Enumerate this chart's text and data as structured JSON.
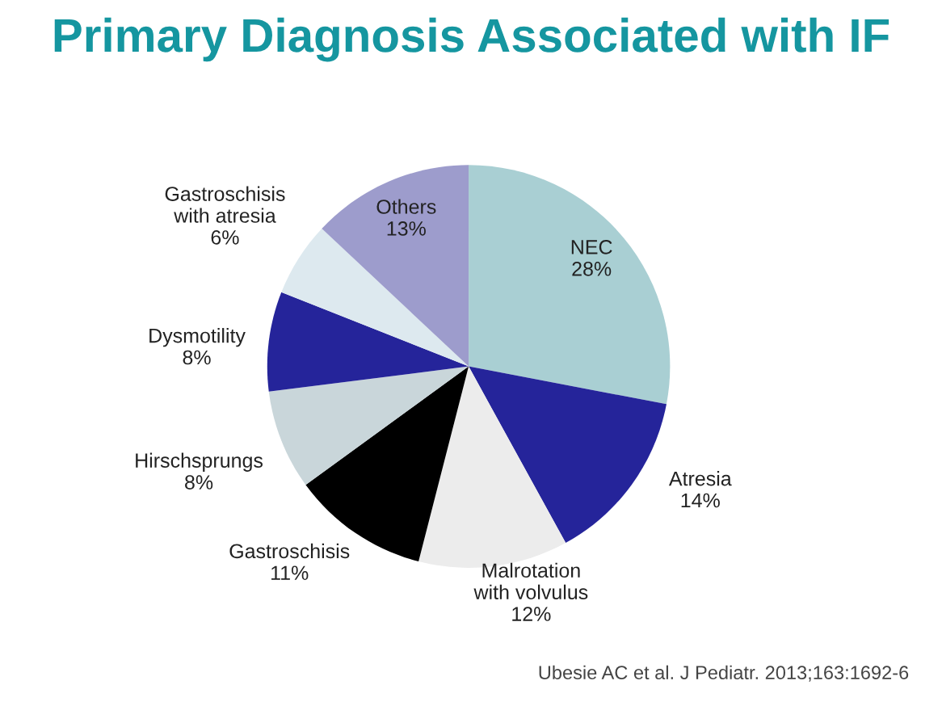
{
  "chart_data": {
    "type": "pie",
    "title": "Primary Diagnosis Associated with IF",
    "categories": [
      "NEC",
      "Atresia",
      "Malrotation\nwith volvulus",
      "Gastroschisis",
      "Hirschsprungs",
      "Dysmotility",
      "Gastroschisis\nwith atresia",
      "Others"
    ],
    "values": [
      28,
      14,
      12,
      11,
      8,
      8,
      6,
      13
    ],
    "value_labels": [
      "28%",
      "14%",
      "12%",
      "11%",
      "8%",
      "8%",
      "6%",
      "13%"
    ],
    "colors": [
      "#a9cfd3",
      "#25249a",
      "#ececec",
      "#000000",
      "#c9d6da",
      "#25249a",
      "#dde9ef",
      "#9d9ccc"
    ],
    "annotations": [
      "Ubesie AC et al. J Pediatr. 2013;163:1692-6"
    ]
  }
}
